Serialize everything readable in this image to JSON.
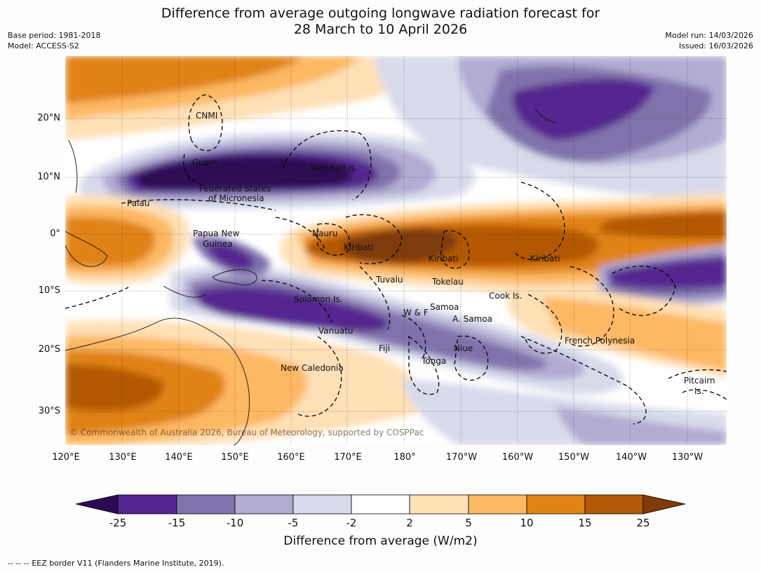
{
  "title_line1": "Difference from average outgoing longwave radiation forecast for",
  "title_line2": "28 March to 10 April 2026",
  "base_period": "Base period: 1981-2018",
  "model": "Model: ACCESS-S2",
  "model_run": "Model run: 14/03/2026",
  "issued": "Issued: 16/03/2026",
  "latitudes": [
    "20°N",
    "10°N",
    "0°",
    "10°S",
    "20°S",
    "30°S"
  ],
  "longitudes": [
    "120°E",
    "130°E",
    "140°E",
    "150°E",
    "160°E",
    "170°E",
    "180°",
    "170°W",
    "160°W",
    "150°W",
    "140°W",
    "130°W"
  ],
  "places": [
    "CNMI",
    "Guam",
    "Marshall Is.",
    "Federated States",
    "of Micronesia",
    "Palau",
    "Papua New",
    "Guinea",
    "Nauru",
    "Kiribati",
    "Kiribati",
    "Kiribati",
    "Tuvalu",
    "Tokelau",
    "Cook Is.",
    "Solomon Is.",
    "Samoa",
    "W & F",
    "A. Samoa",
    "Vanuatu",
    "Fiji",
    "Niue",
    "Tonga",
    "French Polynesia",
    "New Caledonia",
    "Pitcairn",
    "Is."
  ],
  "copyright": "© Commonwealth of Australia 2026, Bureau of Meteorology, supported by COSPPac",
  "colorbar": {
    "ticks": [
      "-25",
      "-15",
      "-10",
      "-5",
      "-2",
      "2",
      "5",
      "10",
      "15",
      "25"
    ],
    "colors": [
      "#2d0a55",
      "#54278f",
      "#8073ac",
      "#b2abd2",
      "#d8daeb",
      "#ffffff",
      "#fee0b6",
      "#fdb863",
      "#e08214",
      "#b35806",
      "#7f3b08"
    ],
    "label": "Difference from average (W/m2)"
  },
  "footnote": "--  --  -- EEZ border V11 (Flanders Marine Institute, 2019)."
}
